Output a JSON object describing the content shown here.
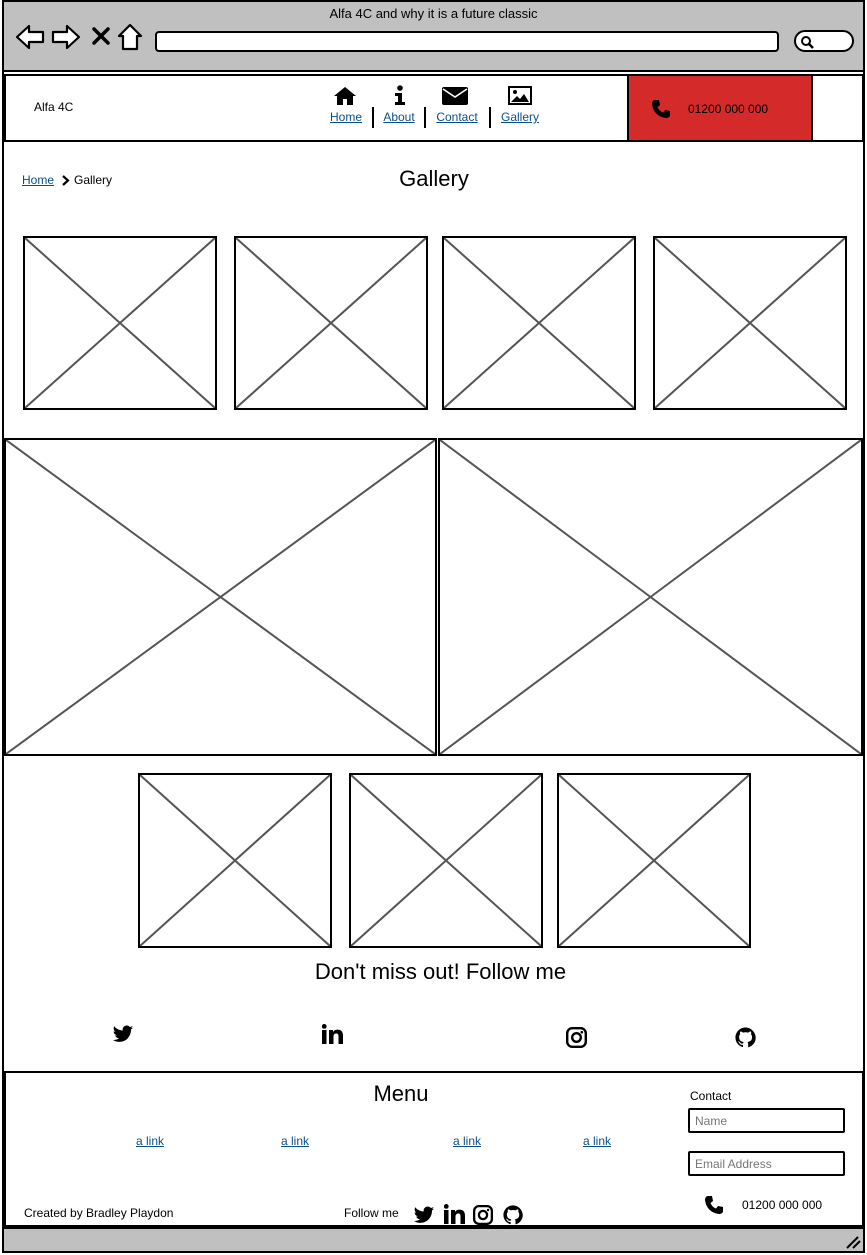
{
  "window": {
    "title": "Alfa 4C and why it is a future classic"
  },
  "browser": {
    "icons": [
      "back-icon",
      "forward-icon",
      "close-icon",
      "home-icon",
      "search-icon"
    ],
    "address_value": ""
  },
  "header": {
    "brand": "Alfa 4C",
    "nav": [
      {
        "label": "Home",
        "icon": "home-icon"
      },
      {
        "label": "About",
        "icon": "info-icon"
      },
      {
        "label": "Contact",
        "icon": "envelope-icon"
      },
      {
        "label": "Gallery",
        "icon": "image-icon"
      }
    ],
    "phone": "01200 000 000",
    "phone_bg": "#d42a2a"
  },
  "breadcrumb": {
    "home": "Home",
    "current": "Gallery"
  },
  "page": {
    "title": "Gallery"
  },
  "follow": {
    "heading": "Don't miss out! Follow me",
    "icons": [
      "twitter-icon",
      "linkedin-icon",
      "instagram-icon",
      "github-icon"
    ]
  },
  "footer": {
    "menu_title": "Menu",
    "links": [
      "a link",
      "a link",
      "a link",
      "a link"
    ],
    "contact_title": "Contact",
    "name_placeholder": "Name",
    "email_placeholder": "Email Address",
    "phone": "01200 000 000",
    "credit": "Created by Bradley Playdon",
    "follow_label": "Follow me"
  },
  "colors": {
    "link": "#0b4f8a",
    "chrome": "#c0c0c0",
    "placeholder_line": "#555555"
  }
}
